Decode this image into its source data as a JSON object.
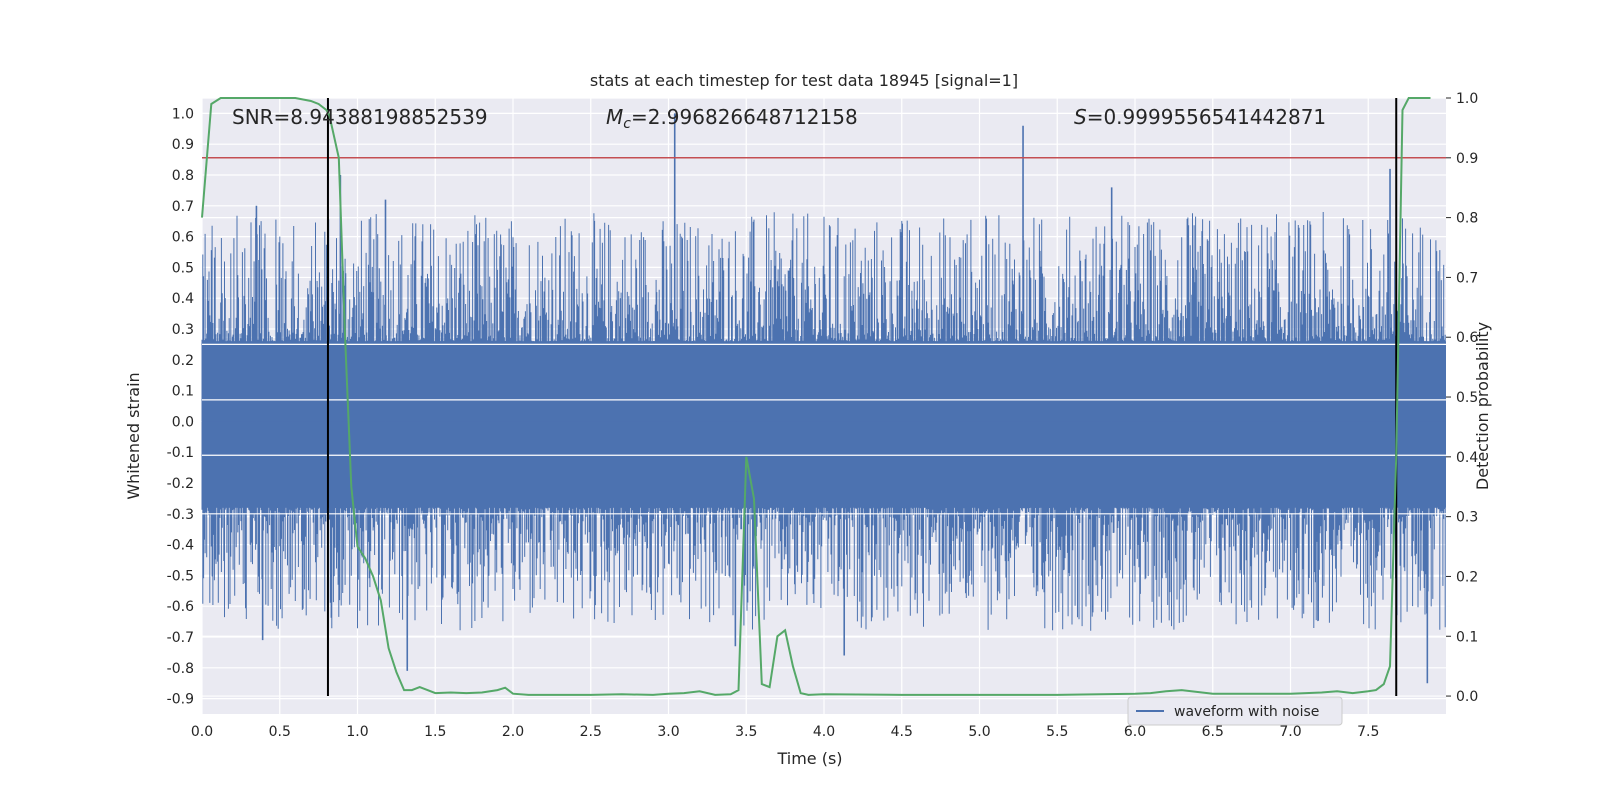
{
  "chart_data": {
    "type": "line",
    "title": "stats at each timestep for test data 18945 [signal=1]",
    "xlabel": "Time (s)",
    "ylabel": "Whitened strain",
    "y2label": "Detection probability",
    "xlim": [
      0.0,
      8.0
    ],
    "ylim": [
      -0.95,
      1.05
    ],
    "y2lim": [
      -0.03,
      1.0
    ],
    "xticks": [
      "0.0",
      "0.5",
      "1.0",
      "1.5",
      "2.0",
      "2.5",
      "3.0",
      "3.5",
      "4.0",
      "4.5",
      "5.0",
      "5.5",
      "6.0",
      "6.5",
      "7.0",
      "7.5"
    ],
    "yticks": [
      "1.0",
      "0.9",
      "0.8",
      "0.7",
      "0.6",
      "0.5",
      "0.4",
      "0.3",
      "0.2",
      "0.1",
      "0.0",
      "-0.1",
      "-0.2",
      "-0.3",
      "-0.4",
      "-0.5",
      "-0.6",
      "-0.7",
      "-0.8",
      "-0.9"
    ],
    "y2ticks": [
      "1.0",
      "0.9",
      "0.8",
      "0.7",
      "0.6",
      "0.5",
      "0.4",
      "0.3",
      "0.2",
      "0.1",
      "0.0"
    ],
    "grid": true,
    "legend_position": "lower-right",
    "stats": {
      "snr": "SNR=8.94388198852539",
      "mc_symbol": "M",
      "mc_sub": "c",
      "mc_value": "=2.996826648712158",
      "s_symbol": "S",
      "s_value": "=0.9999556541442871"
    },
    "threshold_probability": 0.9,
    "vlines_x": [
      0.81,
      7.68
    ],
    "series": [
      {
        "name": "waveform with noise",
        "axis": "left",
        "kind": "noise",
        "envelope_max": 0.8,
        "envelope_min": -0.82,
        "spikes": [
          {
            "x": 0.89,
            "y": 0.8
          },
          {
            "x": 3.04,
            "y": 1.0
          },
          {
            "x": 5.28,
            "y": 0.96
          },
          {
            "x": 0.35,
            "y": 0.7
          },
          {
            "x": 1.18,
            "y": 0.72
          },
          {
            "x": 7.64,
            "y": 0.82
          },
          {
            "x": 7.88,
            "y": -0.85
          },
          {
            "x": 1.32,
            "y": -0.81
          },
          {
            "x": 4.13,
            "y": -0.76
          },
          {
            "x": 3.43,
            "y": -0.73
          },
          {
            "x": 0.39,
            "y": -0.71
          },
          {
            "x": 5.85,
            "y": 0.76
          }
        ]
      },
      {
        "name": "Detection probability",
        "axis": "right",
        "x": [
          0.0,
          0.06,
          0.12,
          0.2,
          0.3,
          0.4,
          0.5,
          0.6,
          0.7,
          0.75,
          0.8,
          0.82,
          0.88,
          0.92,
          0.96,
          1.0,
          1.05,
          1.1,
          1.15,
          1.2,
          1.25,
          1.3,
          1.35,
          1.4,
          1.45,
          1.5,
          1.6,
          1.7,
          1.8,
          1.9,
          1.95,
          2.0,
          2.1,
          2.3,
          2.5,
          2.7,
          2.9,
          3.0,
          3.1,
          3.2,
          3.3,
          3.4,
          3.45,
          3.5,
          3.55,
          3.6,
          3.65,
          3.7,
          3.75,
          3.8,
          3.85,
          3.9,
          4.0,
          4.5,
          5.0,
          5.5,
          6.0,
          6.1,
          6.2,
          6.3,
          6.5,
          7.0,
          7.2,
          7.3,
          7.4,
          7.5,
          7.55,
          7.6,
          7.64,
          7.68,
          7.72,
          7.76,
          7.8,
          7.9
        ],
        "values": [
          0.8,
          0.99,
          1.0,
          1.0,
          1.0,
          1.0,
          1.0,
          1.0,
          0.995,
          0.99,
          0.98,
          0.97,
          0.9,
          0.6,
          0.35,
          0.25,
          0.23,
          0.2,
          0.16,
          0.08,
          0.04,
          0.01,
          0.01,
          0.015,
          0.01,
          0.005,
          0.006,
          0.005,
          0.006,
          0.01,
          0.014,
          0.004,
          0.002,
          0.002,
          0.002,
          0.003,
          0.002,
          0.004,
          0.005,
          0.008,
          0.002,
          0.003,
          0.01,
          0.4,
          0.33,
          0.02,
          0.015,
          0.1,
          0.11,
          0.05,
          0.005,
          0.002,
          0.003,
          0.002,
          0.002,
          0.002,
          0.004,
          0.005,
          0.008,
          0.01,
          0.004,
          0.004,
          0.006,
          0.008,
          0.005,
          0.008,
          0.01,
          0.02,
          0.05,
          0.4,
          0.98,
          1.0,
          1.0,
          1.0
        ],
        "color": "#55a868"
      }
    ],
    "colors": {
      "plot_bg": "#eaeaf2",
      "grid": "#ffffff",
      "waveform": "#4c72b0",
      "probability": "#55a868",
      "threshold": "#c44e52",
      "vline": "#000000"
    }
  }
}
